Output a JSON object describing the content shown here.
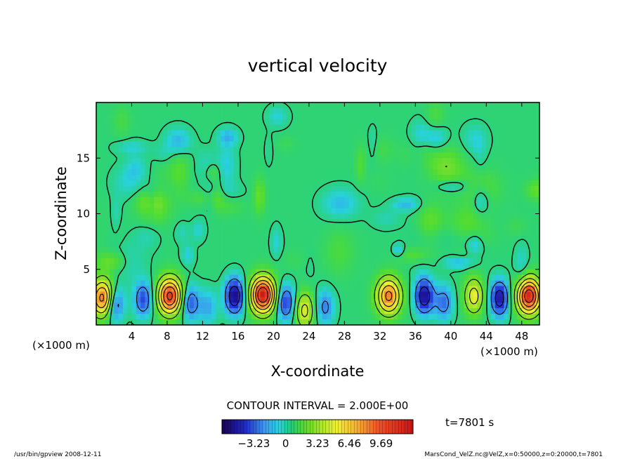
{
  "chart_data": {
    "type": "heatmap",
    "title": "vertical velocity",
    "xlabel": "X-coordinate",
    "ylabel": "Z-coordinate",
    "x_unit_left": "(×1000 m)",
    "x_unit_right": "(×1000 m)",
    "xlim": [
      0,
      50
    ],
    "ylim": [
      0,
      20
    ],
    "x_ticks": [
      4,
      8,
      12,
      16,
      20,
      24,
      28,
      32,
      36,
      40,
      44,
      48
    ],
    "x_tick_labels": [
      "4",
      "8",
      "12",
      "16",
      "20",
      "24",
      "28",
      "32",
      "36",
      "40",
      "44",
      "48"
    ],
    "y_ticks": [
      5,
      10,
      15
    ],
    "y_tick_labels": [
      "5",
      "10",
      "15"
    ],
    "contour_interval_text": "CONTOUR INTERVAL = 2.000E+00",
    "time_text": "t=7801 s",
    "colorbar": {
      "range": [
        -6.46,
        12.92
      ],
      "ticks": [
        -3.23,
        0,
        3.23,
        6.46,
        9.69
      ],
      "tick_labels": [
        "−3.23",
        "0",
        "3.23",
        "6.46",
        "9.69"
      ]
    },
    "near_surface_cells": [
      {
        "x": 0.8,
        "z": 2.4,
        "w": 9.2
      },
      {
        "x": 2.0,
        "z": 2.0,
        "w": -4.6
      },
      {
        "x": 5.3,
        "z": 2.3,
        "w": -3.5
      },
      {
        "x": 8.3,
        "z": 2.6,
        "w": 10.5
      },
      {
        "x": 10.6,
        "z": 2.0,
        "w": -3.2
      },
      {
        "x": 12.6,
        "z": 1.6,
        "w": -1.8
      },
      {
        "x": 15.6,
        "z": 2.6,
        "w": -5.8
      },
      {
        "x": 18.8,
        "z": 2.7,
        "w": 12.0
      },
      {
        "x": 21.4,
        "z": 2.0,
        "w": -3.8
      },
      {
        "x": 23.5,
        "z": 1.3,
        "w": 4.5
      },
      {
        "x": 25.8,
        "z": 1.6,
        "w": -2.5
      },
      {
        "x": 33.0,
        "z": 2.6,
        "w": 8.5
      },
      {
        "x": 37.0,
        "z": 2.6,
        "w": -5.5
      },
      {
        "x": 39.2,
        "z": 2.0,
        "w": -2.8
      },
      {
        "x": 42.6,
        "z": 2.6,
        "w": 4.8
      },
      {
        "x": 45.5,
        "z": 2.4,
        "w": -5.2
      },
      {
        "x": 48.8,
        "z": 2.6,
        "w": 11.5
      }
    ]
  },
  "footer": {
    "left": "/usr/bin/gpview   2008-12-11",
    "right": "MarsCond_VelZ.nc@VelZ,x=0:50000,z=0:20000,t=7801"
  }
}
